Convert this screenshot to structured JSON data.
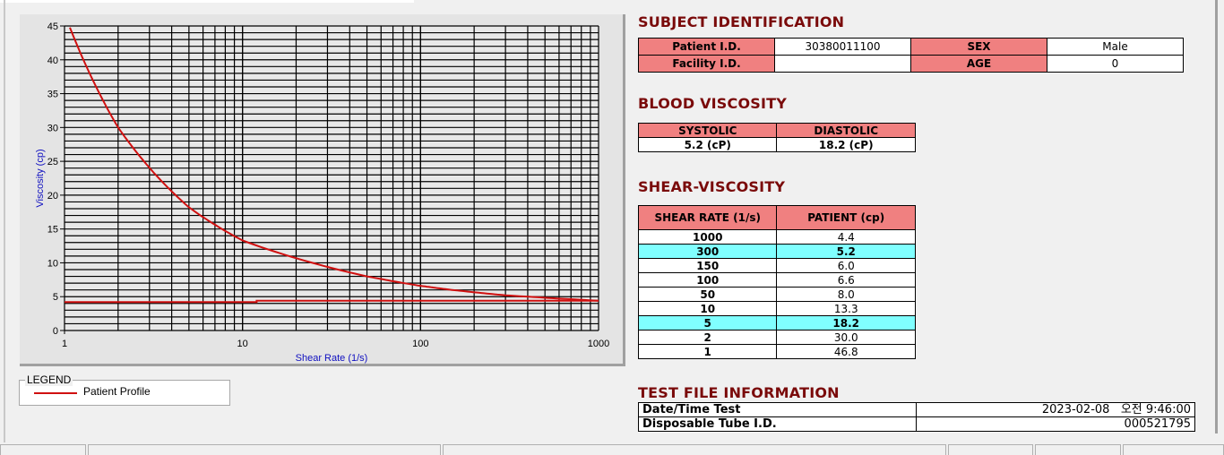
{
  "chart_data": {
    "type": "line",
    "xlabel": "Shear Rate (1/s)",
    "ylabel": "Viscosity (cp)",
    "xscale": "log",
    "xlim": [
      1,
      1000
    ],
    "ylim": [
      0,
      45
    ],
    "xticks": [
      "1",
      "10",
      "100",
      "1000"
    ],
    "yticks": [
      "0",
      "5",
      "10",
      "15",
      "20",
      "25",
      "30",
      "35",
      "40",
      "45"
    ],
    "grid": true,
    "legend_position": "bottom-left",
    "series": [
      {
        "name": "Patient Profile",
        "color": "#d01010",
        "x": [
          1,
          2,
          5,
          10,
          50,
          100,
          150,
          300,
          1000
        ],
        "y": [
          46.8,
          30.0,
          18.2,
          13.3,
          8.0,
          6.6,
          6.0,
          5.2,
          4.4
        ]
      },
      {
        "color": "#d01010",
        "x": [
          1,
          12,
          12,
          1000
        ],
        "y": [
          4.2,
          4.2,
          4.4,
          4.4
        ]
      }
    ]
  },
  "legend": {
    "title": "LEGEND",
    "items": [
      "Patient Profile"
    ]
  },
  "subject": {
    "heading": "SUBJECT IDENTIFICATION",
    "patient_id_label": "Patient I.D.",
    "patient_id": "30380011100",
    "sex_label": "SEX",
    "sex": "Male",
    "facility_label": "Facility I.D.",
    "facility": "",
    "age_label": "AGE",
    "age": "0"
  },
  "blood": {
    "heading": "BLOOD VISCOSITY",
    "systolic_label": "SYSTOLIC",
    "diastolic_label": "DIASTOLIC",
    "systolic": "5.2 (cP)",
    "diastolic": "18.2 (cP)"
  },
  "shear": {
    "heading": "SHEAR-VISCOSITY",
    "col1": "SHEAR RATE (1/s)",
    "col2": "PATIENT (cp)",
    "rows": [
      {
        "rate": "1000",
        "value": "4.4",
        "highlight": false
      },
      {
        "rate": "300",
        "value": "5.2",
        "highlight": true
      },
      {
        "rate": "150",
        "value": "6.0",
        "highlight": false
      },
      {
        "rate": "100",
        "value": "6.6",
        "highlight": false
      },
      {
        "rate": "50",
        "value": "8.0",
        "highlight": false
      },
      {
        "rate": "10",
        "value": "13.3",
        "highlight": false
      },
      {
        "rate": "5",
        "value": "18.2",
        "highlight": true
      },
      {
        "rate": "2",
        "value": "30.0",
        "highlight": false
      },
      {
        "rate": "1",
        "value": "46.8",
        "highlight": false
      }
    ]
  },
  "testfile": {
    "heading": "TEST FILE INFORMATION",
    "date_label": "Date/Time Test",
    "date": "2023-02-08   오전 9:46:00",
    "tube_label": "Disposable Tube I.D.",
    "tube": "000521795"
  },
  "colors": {
    "header": "#f08080",
    "highlight": "#80ffff",
    "heading": "#7a0a0a",
    "curve": "#d01010"
  }
}
